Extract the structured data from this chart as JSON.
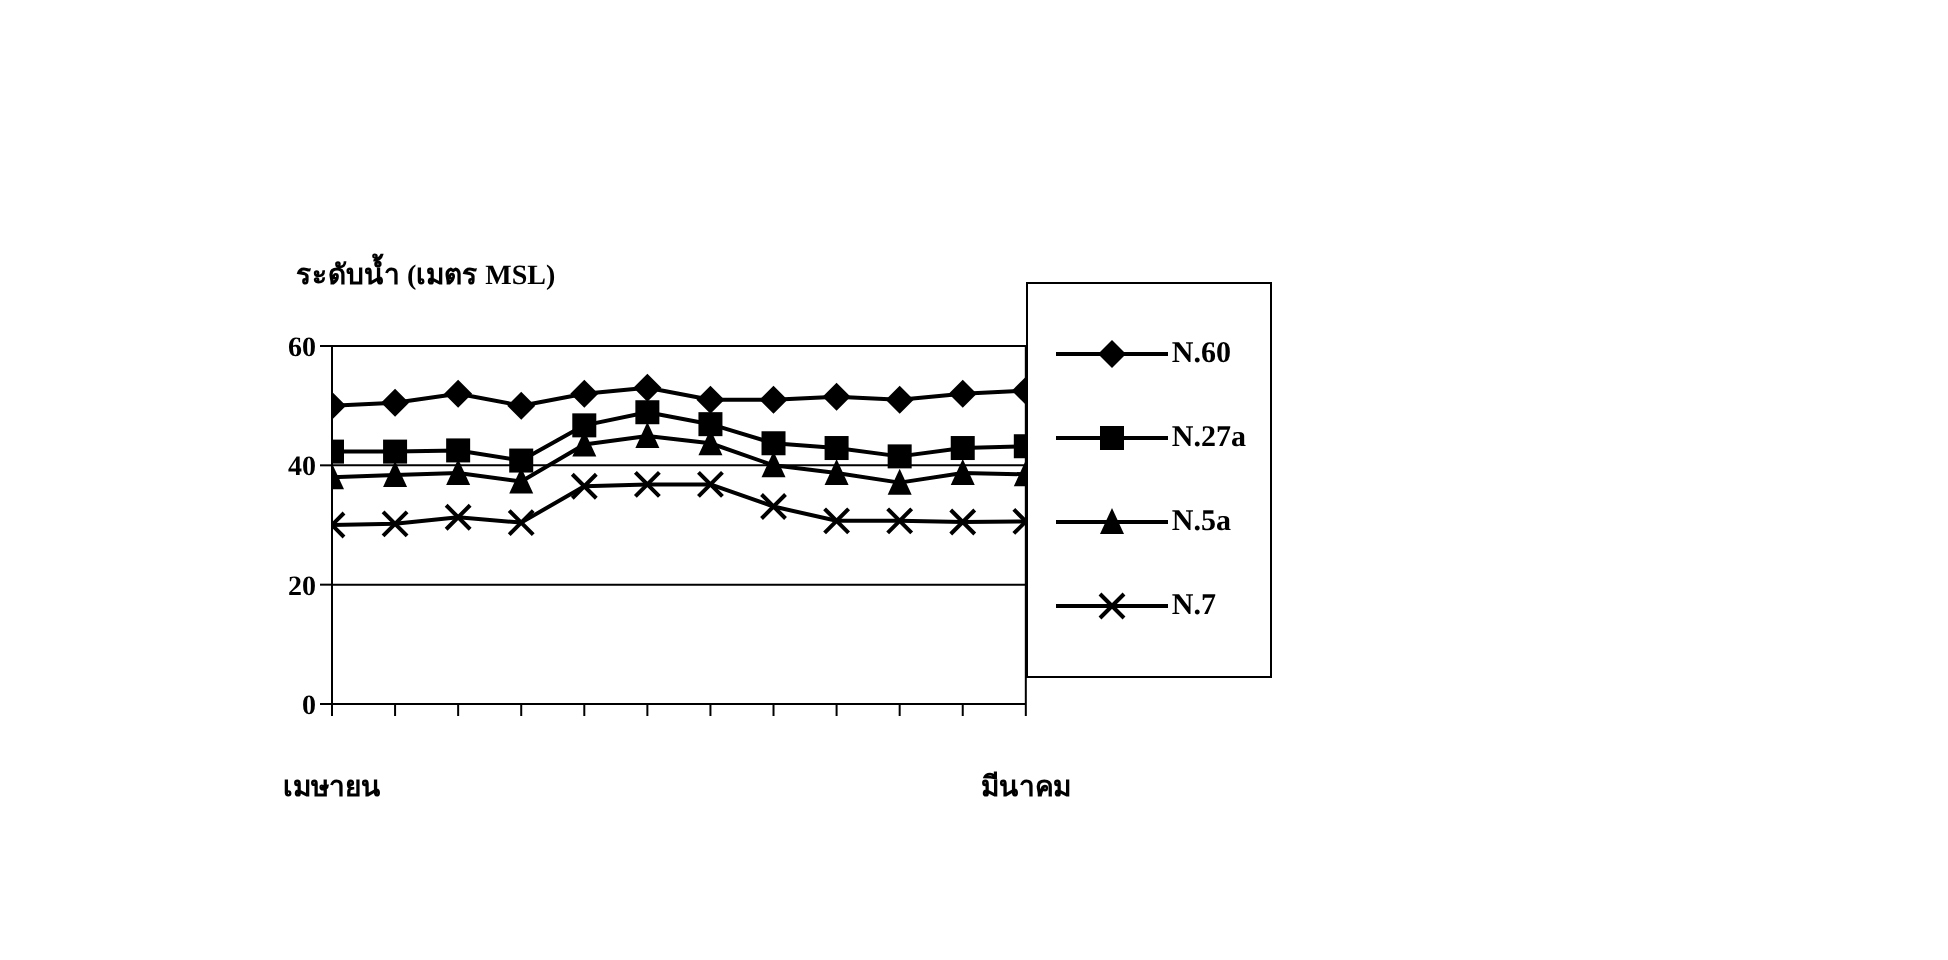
{
  "chart_data": {
    "type": "line",
    "ylabel": "ระดับน้ำ (เมตร MSL)",
    "categories": [
      "เมษายน",
      null,
      null,
      null,
      null,
      null,
      null,
      null,
      null,
      null,
      null,
      "มีนาคม"
    ],
    "ylim": [
      0,
      60
    ],
    "yticks": [
      0,
      20,
      40,
      60
    ],
    "grid": "y",
    "legend": "right",
    "line_style": "solid",
    "series": [
      {
        "name": "N.60",
        "color": "#000000",
        "marker": "diamond",
        "values": [
          50,
          50.5,
          52,
          50,
          52,
          53,
          51,
          51,
          51.5,
          51,
          52,
          52.5
        ]
      },
      {
        "name": "N.27a",
        "color": "#000000",
        "marker": "square",
        "values": [
          42.3,
          42.3,
          42.5,
          40.8,
          46.7,
          48.9,
          46.9,
          43.7,
          42.9,
          41.5,
          42.9,
          43.2
        ]
      },
      {
        "name": "N.5a",
        "color": "#000000",
        "marker": "triangle",
        "values": [
          38,
          38.4,
          38.7,
          37.3,
          43.5,
          44.9,
          43.7,
          40,
          38.7,
          37.1,
          38.7,
          38.5
        ]
      },
      {
        "name": "N.7",
        "color": "#000000",
        "marker": "cross",
        "values": [
          30,
          30.2,
          31.3,
          30.4,
          36.5,
          36.8,
          36.8,
          33.1,
          30.7,
          30.7,
          30.5,
          30.6
        ]
      }
    ]
  }
}
